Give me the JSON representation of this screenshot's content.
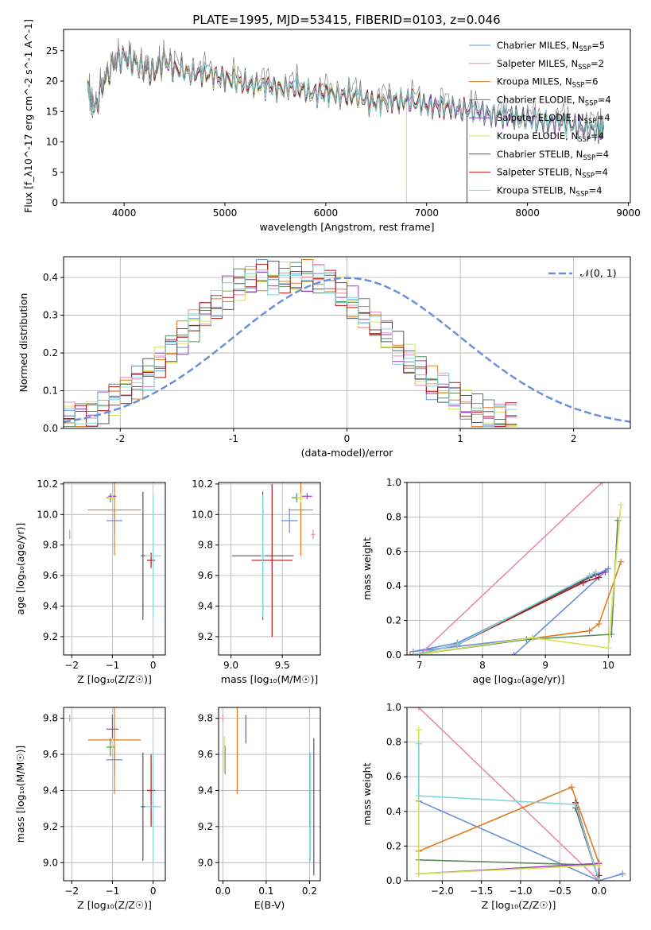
{
  "figure_title": "PLATE=1995, MJD=53415, FIBERID=0103, z=0.046",
  "legend_entries": [
    {
      "model": "Chabrier MILES",
      "nssp": "5",
      "color": "#6a8fdc"
    },
    {
      "model": "Salpeter MILES",
      "nssp": "2",
      "color": "#e889b6"
    },
    {
      "model": "Kroupa MILES",
      "nssp": "6",
      "color": "#e07b22"
    },
    {
      "model": "Chabrier ELODIE",
      "nssp": "4",
      "color": "#5c8a5c"
    },
    {
      "model": "Salpeter ELODIE",
      "nssp": "4",
      "color": "#9a3dbf"
    },
    {
      "model": "Kroupa ELODIE",
      "nssp": "4",
      "color": "#d4e356"
    },
    {
      "model": "Chabrier STELIB",
      "nssp": "4",
      "color": "#555555"
    },
    {
      "model": "Salpeter STELIB",
      "nssp": "4",
      "color": "#b51414"
    },
    {
      "model": "Kroupa STELIB",
      "nssp": "4",
      "color": "#7fd6d9"
    }
  ],
  "chart_data": [
    {
      "id": "spectrum",
      "type": "line",
      "xlabel": "wavelength [Angstrom, rest frame]",
      "ylabel": "Flux [f_λ10^-17 erg cm^-2 s^-1 A^-1]",
      "xlim": [
        3400,
        9020
      ],
      "ylim": [
        0,
        28.5
      ],
      "xticks": [
        4000,
        5000,
        6000,
        7000,
        8000,
        9000
      ],
      "yticks": [
        0,
        5,
        10,
        15,
        20,
        25
      ],
      "data_spectrum": {
        "color": "#808080",
        "x": [
          3640,
          3700,
          3800,
          3900,
          4000,
          4100,
          4200,
          4300,
          4400,
          4500,
          4700,
          4900,
          5100,
          5300,
          5500,
          5700,
          5900,
          6100,
          6300,
          6500,
          6700,
          6900,
          7100,
          7300,
          7500,
          7700,
          7900,
          8100,
          8300,
          8500,
          8700,
          8760
        ],
        "y": [
          19.5,
          15.5,
          20.5,
          23.5,
          24.5,
          23.5,
          22.5,
          22.0,
          24.0,
          22.5,
          22.0,
          21.5,
          20.5,
          20.0,
          19.5,
          19.5,
          18.5,
          18.5,
          18.0,
          17.0,
          17.5,
          17.0,
          16.5,
          16.0,
          15.5,
          15.0,
          14.5,
          14.0,
          14.0,
          13.0,
          12.5,
          13.0
        ]
      },
      "models_cutoff_A": {
        "Salpeter STELIB": 7400,
        "Kroupa ELODIE": 6800
      },
      "legend_position": "right"
    },
    {
      "id": "residual-histogram",
      "type": "histogram",
      "xlabel": "(data-model)/error",
      "ylabel": "Normed distribution",
      "xlim": [
        -2.5,
        2.5
      ],
      "ylim": [
        0,
        0.455
      ],
      "xticks": [
        -2,
        -1,
        0,
        1,
        2
      ],
      "yticks": [
        0.0,
        0.1,
        0.2,
        0.3,
        0.4
      ],
      "reference_curve": {
        "label": "𝒩(0, 1)",
        "style": "dashed",
        "color": "#6a8fdc"
      },
      "bin_width": 0.1,
      "envelope_values": [
        0.03,
        0.035,
        0.045,
        0.06,
        0.08,
        0.1,
        0.12,
        0.15,
        0.18,
        0.21,
        0.24,
        0.27,
        0.3,
        0.33,
        0.36,
        0.38,
        0.39,
        0.4,
        0.4,
        0.4,
        0.4,
        0.4,
        0.39,
        0.38,
        0.36,
        0.33,
        0.3,
        0.27,
        0.24,
        0.21,
        0.18,
        0.15,
        0.12,
        0.1,
        0.08,
        0.06,
        0.045,
        0.035,
        0.03,
        0.025
      ],
      "legend_position": "top-right"
    },
    {
      "id": "age-vs-z",
      "type": "scatter-errorbar",
      "xlabel": "Z [log₁₀(Z/Z☉)]",
      "ylabel": "age  [log₁₀(age/yr)]",
      "xlim": [
        -2.2,
        0.3
      ],
      "ylim": [
        9.08,
        10.21
      ],
      "xticks": [
        -2,
        -1,
        0
      ],
      "yticks": [
        9.2,
        9.4,
        9.6,
        9.8,
        10.0,
        10.2
      ],
      "points": [
        {
          "model": "Chabrier MILES",
          "x": -0.95,
          "y": 9.96,
          "xerr": 0.2,
          "yerr": 0.08
        },
        {
          "model": "Salpeter MILES",
          "x": -2.05,
          "y": 9.87,
          "xerr": 0.0,
          "yerr": 0.03
        },
        {
          "model": "Kroupa MILES",
          "x": -0.95,
          "y": 10.03,
          "xerr": 0.65,
          "yerr": 0.3
        },
        {
          "model": "Chabrier ELODIE",
          "x": -1.05,
          "y": 10.11,
          "xerr": 0.1,
          "yerr": 0.03
        },
        {
          "model": "Salpeter ELODIE",
          "x": -1.0,
          "y": 10.12,
          "xerr": 0.1,
          "yerr": 0.02
        },
        {
          "model": "Kroupa ELODIE",
          "x": -1.0,
          "y": 10.11,
          "xerr": 0.1,
          "yerr": 0.03
        },
        {
          "model": "Chabrier STELIB",
          "x": -0.25,
          "y": 9.73,
          "xerr": 0.05,
          "yerr": 0.42
        },
        {
          "model": "Salpeter STELIB",
          "x": -0.05,
          "y": 9.7,
          "xerr": 0.1,
          "yerr": 0.05
        },
        {
          "model": "Kroupa STELIB",
          "x": 0.0,
          "y": 9.73,
          "xerr": 0.2,
          "yerr": 0.4
        }
      ]
    },
    {
      "id": "age-vs-mass",
      "type": "scatter-errorbar",
      "xlabel": "mass [log₁₀(M/M☉)]",
      "ylabel": "",
      "xlim": [
        8.88,
        9.87
      ],
      "ylim": [
        9.08,
        10.21
      ],
      "xticks": [
        9.0,
        9.5
      ],
      "yticks": [
        9.2,
        9.4,
        9.6,
        9.8,
        10.0,
        10.2
      ],
      "points": [
        {
          "model": "Chabrier MILES",
          "x": 9.57,
          "y": 9.96,
          "xerr": 0.08,
          "yerr": 0.08
        },
        {
          "model": "Salpeter MILES",
          "x": 9.8,
          "y": 9.87,
          "xerr": 0.02,
          "yerr": 0.03
        },
        {
          "model": "Kroupa MILES",
          "x": 9.68,
          "y": 10.03,
          "xerr": 0.12,
          "yerr": 0.3
        },
        {
          "model": "Chabrier ELODIE",
          "x": 9.64,
          "y": 10.11,
          "xerr": 0.05,
          "yerr": 0.03
        },
        {
          "model": "Salpeter ELODIE",
          "x": 9.74,
          "y": 10.12,
          "xerr": 0.05,
          "yerr": 0.02
        },
        {
          "model": "Kroupa ELODIE",
          "x": 9.68,
          "y": 10.11,
          "xerr": 0.04,
          "yerr": 0.03
        },
        {
          "model": "Chabrier STELIB",
          "x": 9.31,
          "y": 9.73,
          "xerr": 0.3,
          "yerr": 0.42
        },
        {
          "model": "Salpeter STELIB",
          "x": 9.4,
          "y": 9.7,
          "xerr": 0.2,
          "yerr": 0.5
        },
        {
          "model": "Kroupa STELIB",
          "x": 9.31,
          "y": 9.73,
          "xerr": 0.02,
          "yerr": 0.4
        }
      ]
    },
    {
      "id": "mass-weight-vs-age",
      "type": "line",
      "xlabel": "age  [log₁₀(age/yr)]",
      "ylabel": "mass weight",
      "xlim": [
        6.8,
        10.35
      ],
      "ylim": [
        0,
        1.0
      ],
      "xticks": [
        7,
        8,
        9,
        10
      ],
      "yticks": [
        0.0,
        0.2,
        0.4,
        0.6,
        0.8,
        1.0
      ],
      "series": [
        {
          "model": "Chabrier MILES",
          "x": [
            6.85,
            8.5,
            10.0,
            7.6,
            6.9,
            8.8
          ],
          "y": [
            0.0,
            0.0,
            0.5,
            0.07,
            0.02,
            0.1
          ]
        },
        {
          "model": "Salpeter MILES",
          "x": [
            7.0,
            9.9
          ],
          "y": [
            0.0,
            1.0
          ]
        },
        {
          "model": "Kroupa MILES",
          "x": [
            6.85,
            9.7,
            9.85,
            10.2
          ],
          "y": [
            0.0,
            0.14,
            0.18,
            0.54
          ]
        },
        {
          "model": "Chabrier ELODIE",
          "x": [
            6.9,
            8.7,
            10.05,
            10.15
          ],
          "y": [
            0.0,
            0.09,
            0.12,
            0.78
          ]
        },
        {
          "model": "Salpeter ELODIE",
          "x": [
            6.9,
            7.6,
            9.7,
            9.95
          ],
          "y": [
            0.0,
            0.06,
            0.45,
            0.48
          ]
        },
        {
          "model": "Kroupa ELODIE",
          "x": [
            6.9,
            8.8,
            10.0,
            10.2
          ],
          "y": [
            0.0,
            0.1,
            0.04,
            0.87
          ]
        },
        {
          "model": "Chabrier STELIB",
          "x": [
            6.9,
            7.6,
            9.7,
            9.8
          ],
          "y": [
            0.0,
            0.06,
            0.45,
            0.47
          ]
        },
        {
          "model": "Salpeter STELIB",
          "x": [
            6.9,
            7.6,
            9.6,
            9.85
          ],
          "y": [
            0.0,
            0.06,
            0.42,
            0.45
          ]
        },
        {
          "model": "Kroupa STELIB",
          "x": [
            6.9,
            7.6,
            9.7,
            9.8
          ],
          "y": [
            0.0,
            0.06,
            0.46,
            0.48
          ]
        }
      ]
    },
    {
      "id": "mass-vs-z",
      "type": "scatter-errorbar",
      "xlabel": "Z [log₁₀(Z/Z☉)]",
      "ylabel": "mass [log₁₀(M/M☉)]",
      "xlim": [
        -2.2,
        0.3
      ],
      "ylim": [
        8.9,
        9.86
      ],
      "xticks": [
        -2,
        -1,
        0
      ],
      "yticks": [
        9.0,
        9.2,
        9.4,
        9.6,
        9.8
      ],
      "points": [
        {
          "model": "Chabrier MILES",
          "x": -0.95,
          "y": 9.57,
          "xerr": 0.2,
          "yerr": 0.08
        },
        {
          "model": "Salpeter MILES",
          "x": -2.05,
          "y": 9.8,
          "xerr": 0.0,
          "yerr": 0.02
        },
        {
          "model": "Kroupa MILES",
          "x": -0.95,
          "y": 9.68,
          "xerr": 0.65,
          "yerr": 0.3
        },
        {
          "model": "Chabrier ELODIE",
          "x": -1.05,
          "y": 9.64,
          "xerr": 0.1,
          "yerr": 0.05
        },
        {
          "model": "Salpeter ELODIE",
          "x": -1.0,
          "y": 9.74,
          "xerr": 0.15,
          "yerr": 0.08
        },
        {
          "model": "Kroupa ELODIE",
          "x": -1.0,
          "y": 9.65,
          "xerr": 0.1,
          "yerr": 0.04
        },
        {
          "model": "Chabrier STELIB",
          "x": -0.25,
          "y": 9.31,
          "xerr": 0.05,
          "yerr": 0.3
        },
        {
          "model": "Salpeter STELIB",
          "x": -0.05,
          "y": 9.4,
          "xerr": 0.1,
          "yerr": 0.2
        },
        {
          "model": "Kroupa STELIB",
          "x": 0.0,
          "y": 9.31,
          "xerr": 0.2,
          "yerr": 0.3
        }
      ]
    },
    {
      "id": "mass-vs-ebv",
      "type": "scatter-errorbar",
      "xlabel": "E(B-V)",
      "ylabel": "",
      "xlim": [
        -0.01,
        0.225
      ],
      "ylim": [
        8.9,
        9.86
      ],
      "xticks": [
        0.0,
        0.1,
        0.2
      ],
      "yticks": [
        9.0,
        9.2,
        9.4,
        9.6,
        9.8
      ],
      "points": [
        {
          "model": "Chabrier MILES",
          "x": 0.005,
          "y": 9.57,
          "yerr": 0.08
        },
        {
          "model": "Salpeter MILES",
          "x": 0.0,
          "y": 9.8,
          "yerr": 0.02
        },
        {
          "model": "Kroupa MILES",
          "x": 0.033,
          "y": 9.68,
          "yerr": 0.3
        },
        {
          "model": "Salpeter ELODIE",
          "x": 0.053,
          "y": 9.74,
          "yerr": 0.08
        },
        {
          "model": "Kroupa ELODIE",
          "x": 0.003,
          "y": 9.6,
          "yerr": 0.1
        },
        {
          "model": "Chabrier STELIB",
          "x": 0.21,
          "y": 9.31,
          "yerr": 0.38
        },
        {
          "model": "Salpeter STELIB",
          "x": 0.202,
          "y": 9.4,
          "yerr": 0.2
        },
        {
          "model": "Kroupa STELIB",
          "x": 0.202,
          "y": 9.31,
          "yerr": 0.3
        }
      ]
    },
    {
      "id": "mass-weight-vs-z",
      "type": "line",
      "xlabel": "Z [log₁₀(Z/Z☉)]",
      "ylabel": "mass weight",
      "xlim": [
        -2.45,
        0.4
      ],
      "ylim": [
        0,
        1.0
      ],
      "xticks": [
        -2.0,
        -1.5,
        -1.0,
        -0.5,
        0.0
      ],
      "yticks": [
        0.0,
        0.2,
        0.4,
        0.6,
        0.8,
        1.0
      ],
      "series": [
        {
          "model": "Chabrier MILES",
          "x": [
            -2.3,
            0.0,
            0.3
          ],
          "y": [
            0.46,
            0.0,
            0.04
          ]
        },
        {
          "model": "Salpeter MILES",
          "x": [
            -2.3,
            0.0
          ],
          "y": [
            1.0,
            0.0
          ]
        },
        {
          "model": "Kroupa MILES",
          "x": [
            -2.3,
            -2.3,
            -0.35,
            0.0,
            0.0
          ],
          "y": [
            0.17,
            0.17,
            0.54,
            0.1,
            0.0
          ]
        },
        {
          "model": "Chabrier ELODIE",
          "x": [
            -2.3,
            0.0,
            0.0
          ],
          "y": [
            0.12,
            0.09,
            0.0
          ]
        },
        {
          "model": "Salpeter ELODIE",
          "x": [
            -2.3,
            0.0,
            0.0
          ],
          "y": [
            0.04,
            0.1,
            0.0
          ]
        },
        {
          "model": "Kroupa ELODIE",
          "x": [
            -2.3,
            -2.3,
            0.0
          ],
          "y": [
            0.87,
            0.04,
            0.09
          ]
        },
        {
          "model": "Chabrier STELIB",
          "x": [
            -0.3,
            -0.3,
            0.0
          ],
          "y": [
            0.45,
            0.42,
            0.0
          ]
        },
        {
          "model": "Salpeter STELIB",
          "x": [
            -0.3,
            0.0,
            0.0
          ],
          "y": [
            0.45,
            0.0,
            0.03
          ]
        },
        {
          "model": "Kroupa STELIB",
          "x": [
            -2.3,
            -2.3,
            -0.3,
            0.0
          ],
          "y": [
            0.79,
            0.49,
            0.44,
            0.0
          ]
        }
      ]
    }
  ]
}
